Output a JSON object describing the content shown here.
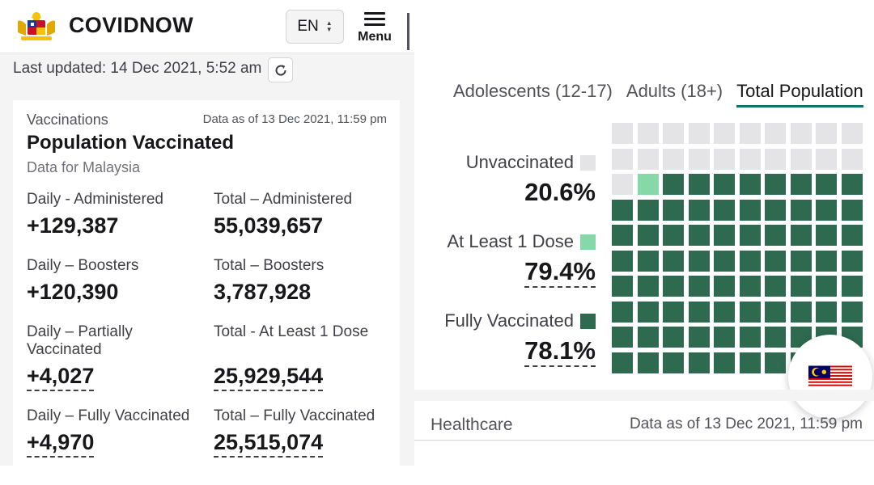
{
  "header": {
    "brand": "COVIDNOW",
    "language": "EN",
    "menu_label": "Menu",
    "logo_icon": "malaysia-coat-of-arms-icon"
  },
  "status": {
    "last_updated": "Last updated: 14 Dec 2021, 5:52 am",
    "refresh_icon": "refresh-icon"
  },
  "vaccination_card": {
    "section": "Vaccinations",
    "data_as_of": "Data as of 13 Dec 2021, 11:59 pm",
    "title": "Population Vaccinated",
    "subtitle": "Data for Malaysia",
    "stats": [
      {
        "label": "Daily - Administered",
        "value": "+129,387"
      },
      {
        "label": "Total – Administered",
        "value": "55,039,657"
      },
      {
        "label": "Daily – Boosters",
        "value": "+120,390"
      },
      {
        "label": "Total – Boosters",
        "value": "3,787,928"
      },
      {
        "label": "Daily – Partially Vaccinated",
        "value": "+4,027"
      },
      {
        "label": "Total - At Least 1 Dose",
        "value": "25,929,544"
      },
      {
        "label": "Daily – Fully Vaccinated",
        "value": "+4,970"
      },
      {
        "label": "Total – Fully Vaccinated",
        "value": "25,515,074"
      }
    ]
  },
  "waffle_panel": {
    "tabs": [
      {
        "label": "Adolescents (12-17)",
        "active": false
      },
      {
        "label": "Adults (18+)",
        "active": false
      },
      {
        "label": "Total Population",
        "active": true
      }
    ],
    "legend": [
      {
        "name": "Unvaccinated",
        "value": "20.6%",
        "color": "#e4e4e7"
      },
      {
        "name": "At Least 1 Dose",
        "value": "79.4%",
        "color": "#86d8a8"
      },
      {
        "name": "Fully Vaccinated",
        "value": "78.1%",
        "color": "#2d6a4f"
      }
    ],
    "flag_icon": "malaysia-flag-icon"
  },
  "healthcare": {
    "title": "Healthcare",
    "data_as_of": "Data as of 13 Dec 2021, 11:59 pm"
  },
  "chart_data": {
    "type": "waffle",
    "grid": [
      10,
      10
    ],
    "series": [
      {
        "name": "Unvaccinated",
        "percent": 20.6
      },
      {
        "name": "At Least 1 Dose",
        "percent": 79.4
      },
      {
        "name": "Fully Vaccinated",
        "percent": 78.1
      }
    ]
  }
}
